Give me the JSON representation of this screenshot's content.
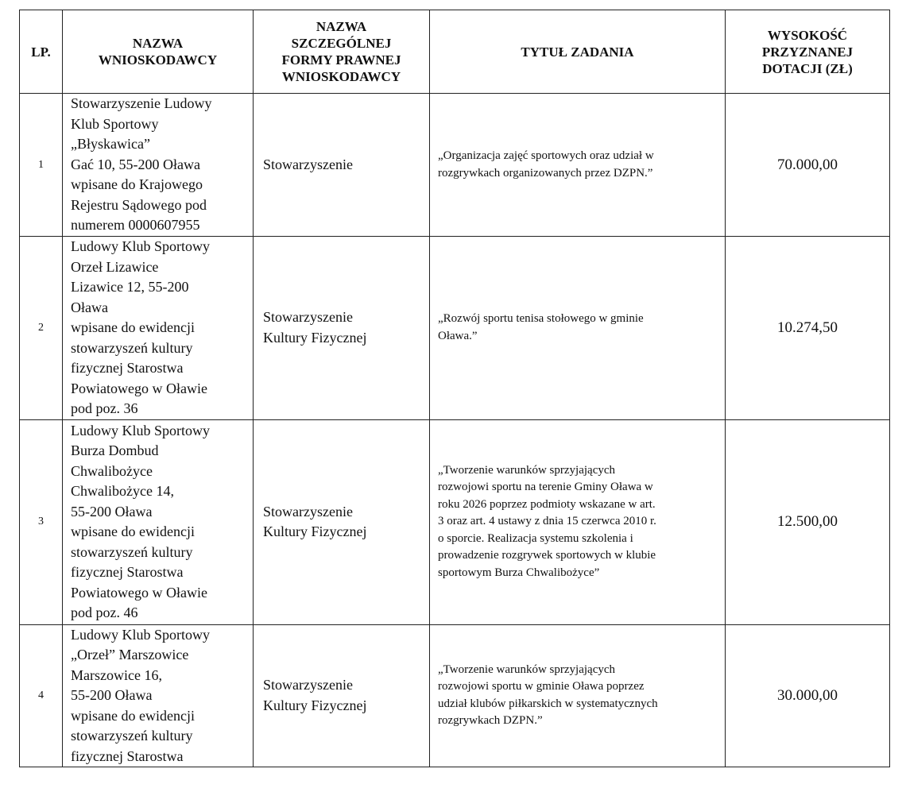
{
  "table": {
    "headers": [
      "LP.",
      "NAZWA WNIOSKODAWCY",
      "NAZWA SZCZEGÓLNEJ FORMY PRAWNEJ WNIOSKODAWCY",
      "TYTUŁ ZADANIA",
      "WYSOKOŚĆ PRZYZNANEJ DOTACJI (ZŁ)"
    ],
    "header_lines": [
      [
        "LP."
      ],
      [
        "NAZWA",
        "WNIOSKODAWCY"
      ],
      [
        "NAZWA",
        "SZCZEGÓLNEJ",
        "FORMY PRAWNEJ",
        "WNIOSKODAWCY"
      ],
      [
        "TYTUŁ ZADANIA"
      ],
      [
        "WYSOKOŚĆ",
        "PRZYZNANEJ",
        "DOTACJI (ZŁ)"
      ]
    ],
    "rows": [
      {
        "lp": "1",
        "name_lines": [
          "Stowarzyszenie Ludowy",
          "Klub Sportowy",
          "„Błyskawica”",
          "Gać 10, 55-200 Oława",
          "wpisane do Krajowego",
          "Rejestru Sądowego pod",
          "numerem 0000607955"
        ],
        "form_lines": [
          "Stowarzyszenie"
        ],
        "title_lines": [
          "„Organizacja zajęć sportowych oraz udział w",
          "rozgrywkach organizowanych przez DZPN.”"
        ],
        "amount": "70.000,00"
      },
      {
        "lp": "2",
        "name_lines": [
          "Ludowy Klub Sportowy",
          "Orzeł Lizawice",
          "Lizawice 12, 55-200",
          "Oława",
          "wpisane do ewidencji",
          "stowarzyszeń kultury",
          "fizycznej Starostwa",
          "Powiatowego w Oławie",
          "pod poz. 36"
        ],
        "form_lines": [
          "Stowarzyszenie",
          "Kultury Fizycznej"
        ],
        "title_lines": [
          "„Rozwój sportu tenisa stołowego w gminie",
          "Oława.”"
        ],
        "amount": "10.274,50"
      },
      {
        "lp": "3",
        "name_lines": [
          "Ludowy Klub Sportowy",
          "Burza Dombud",
          "Chwalibożyce",
          "Chwalibożyce 14,",
          "55-200 Oława",
          "wpisane do ewidencji",
          "stowarzyszeń kultury",
          "fizycznej Starostwa",
          "Powiatowego w Oławie",
          "pod poz. 46"
        ],
        "form_lines": [
          "Stowarzyszenie",
          "Kultury Fizycznej"
        ],
        "title_lines": [
          "„Tworzenie warunków sprzyjających",
          "rozwojowi sportu na terenie Gminy Oława w",
          "roku 2026 poprzez podmioty wskazane w art.",
          "3 oraz art. 4 ustawy z dnia 15 czerwca 2010 r.",
          "o sporcie. Realizacja systemu szkolenia i",
          "prowadzenie rozgrywek sportowych w klubie",
          "sportowym Burza Chwalibożyce”"
        ],
        "amount": "12.500,00"
      },
      {
        "lp": "4",
        "name_lines": [
          "Ludowy Klub Sportowy",
          "„Orzeł” Marszowice",
          "Marszowice 16,",
          "55-200 Oława",
          "wpisane do ewidencji",
          "stowarzyszeń kultury",
          "fizycznej Starostwa"
        ],
        "form_lines": [
          "Stowarzyszenie",
          "Kultury Fizycznej"
        ],
        "title_lines": [
          "„Tworzenie warunków sprzyjających",
          "rozwojowi sportu w gminie Oława poprzez",
          "udział klubów piłkarskich w systematycznych",
          "rozgrywkach DZPN.”"
        ],
        "amount": "30.000,00"
      }
    ]
  }
}
